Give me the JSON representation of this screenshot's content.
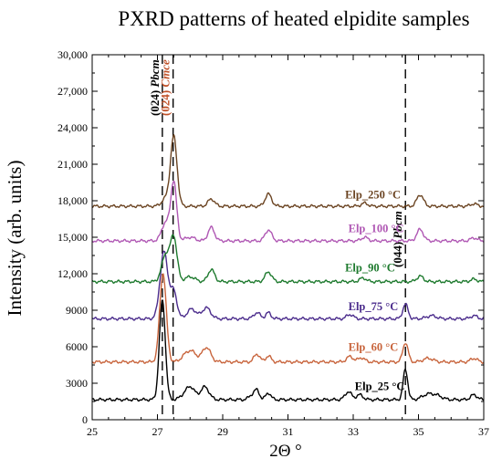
{
  "chart_data": {
    "type": "line",
    "title": "PXRD patterns of heated elpidite samples",
    "xlabel": "2Θ °",
    "ylabel": "Intensity (arb. units)",
    "xlim": [
      25,
      37
    ],
    "ylim": [
      0,
      30000
    ],
    "xticks": [
      25,
      27,
      29,
      31,
      33,
      35,
      37
    ],
    "yticks": [
      0,
      3000,
      6000,
      9000,
      12000,
      15000,
      18000,
      21000,
      24000,
      27000,
      30000
    ],
    "ytick_labels": [
      "0",
      "3000",
      "6000",
      "9000",
      "12,000",
      "15,000",
      "18,000",
      "21,000",
      "24,000",
      "27,000",
      "30,000"
    ],
    "grid": false,
    "reference_lines": [
      {
        "x": 27.15,
        "label_plain": "(024) ",
        "label_italic": "Pbcm",
        "color": "#000000"
      },
      {
        "x": 27.48,
        "label_plain": "(024) ",
        "label_italic": "Cmce",
        "color": "#c0522a"
      },
      {
        "x": 34.6,
        "label_plain": "(044) ",
        "label_italic": "Pbcm",
        "color": "#000000"
      }
    ],
    "series": [
      {
        "name": "Elp_25 °C",
        "color": "#000000",
        "baseline": 1650,
        "label_x": 33.05,
        "label_y": 2450,
        "peaks": [
          [
            27.15,
            8200,
            0.09
          ],
          [
            27.9,
            600,
            0.15
          ],
          [
            28.05,
            650,
            0.12
          ],
          [
            28.45,
            1050,
            0.13
          ],
          [
            29.9,
            350,
            0.1
          ],
          [
            30.05,
            700,
            0.08
          ],
          [
            30.4,
            550,
            0.08
          ],
          [
            32.85,
            650,
            0.1
          ],
          [
            33.2,
            400,
            0.1
          ],
          [
            34.6,
            2500,
            0.07
          ],
          [
            35.3,
            450,
            0.18
          ],
          [
            35.6,
            250,
            0.15
          ],
          [
            36.7,
            400,
            0.1
          ]
        ]
      },
      {
        "name": "Elp_60 °C",
        "color": "#c8643c",
        "baseline": 4750,
        "label_x": 32.85,
        "label_y": 5650,
        "peaks": [
          [
            27.17,
            7300,
            0.1
          ],
          [
            27.9,
            650,
            0.15
          ],
          [
            28.1,
            550,
            0.13
          ],
          [
            28.5,
            1200,
            0.13
          ],
          [
            30.05,
            650,
            0.09
          ],
          [
            30.4,
            500,
            0.08
          ],
          [
            32.9,
            450,
            0.1
          ],
          [
            33.25,
            350,
            0.1
          ],
          [
            34.6,
            1600,
            0.08
          ],
          [
            35.3,
            300,
            0.15
          ],
          [
            36.7,
            300,
            0.1
          ]
        ]
      },
      {
        "name": "Elp_75 °C",
        "color": "#4b2c8c",
        "baseline": 8300,
        "label_x": 32.85,
        "label_y": 9000,
        "peaks": [
          [
            27.2,
            5500,
            0.12
          ],
          [
            27.5,
            2200,
            0.1
          ],
          [
            28.05,
            800,
            0.14
          ],
          [
            28.5,
            900,
            0.13
          ],
          [
            30.05,
            500,
            0.1
          ],
          [
            30.4,
            500,
            0.08
          ],
          [
            32.9,
            350,
            0.1
          ],
          [
            34.6,
            1200,
            0.08
          ],
          [
            35.4,
            250,
            0.15
          ],
          [
            36.7,
            250,
            0.1
          ]
        ]
      },
      {
        "name": "Elp_90 °C",
        "color": "#1e7a2e",
        "baseline": 11350,
        "label_x": 32.75,
        "label_y": 12200,
        "peaks": [
          [
            27.25,
            2200,
            0.12
          ],
          [
            27.5,
            3600,
            0.1
          ],
          [
            28.0,
            400,
            0.15
          ],
          [
            28.65,
            1000,
            0.1
          ],
          [
            30.4,
            800,
            0.1
          ],
          [
            33.3,
            300,
            0.1
          ],
          [
            35.05,
            450,
            0.1
          ],
          [
            36.7,
            200,
            0.1
          ]
        ]
      },
      {
        "name": "Elp_100 °C",
        "color": "#b058b4",
        "baseline": 14700,
        "label_x": 32.85,
        "label_y": 15400,
        "peaks": [
          [
            27.25,
            1500,
            0.12
          ],
          [
            27.5,
            4800,
            0.09
          ],
          [
            28.0,
            300,
            0.15
          ],
          [
            28.65,
            1100,
            0.1
          ],
          [
            30.4,
            900,
            0.1
          ],
          [
            33.35,
            300,
            0.1
          ],
          [
            35.05,
            950,
            0.1
          ],
          [
            36.7,
            250,
            0.1
          ]
        ]
      },
      {
        "name": "Elp_250 °C",
        "color": "#6b4422",
        "baseline": 17550,
        "label_x": 32.75,
        "label_y": 18200,
        "peaks": [
          [
            27.5,
            5700,
            0.1
          ],
          [
            27.25,
            600,
            0.12
          ],
          [
            28.65,
            600,
            0.1
          ],
          [
            30.4,
            1000,
            0.1
          ],
          [
            33.35,
            250,
            0.1
          ],
          [
            35.05,
            950,
            0.1
          ],
          [
            36.7,
            200,
            0.1
          ]
        ]
      }
    ]
  }
}
